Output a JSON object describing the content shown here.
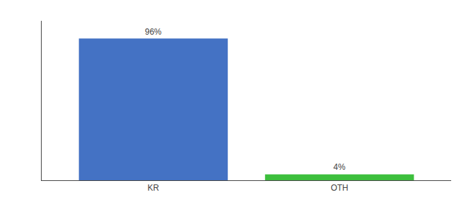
{
  "chart_data": {
    "type": "bar",
    "categories": [
      "KR",
      "OTH"
    ],
    "values": [
      96,
      4
    ],
    "value_labels": [
      "96%",
      "4%"
    ],
    "data_labels": true,
    "colors": [
      "#4472c4",
      "#3dbf3d"
    ],
    "ylim": [
      0,
      108
    ],
    "grid": false,
    "tick_labels": "x"
  }
}
